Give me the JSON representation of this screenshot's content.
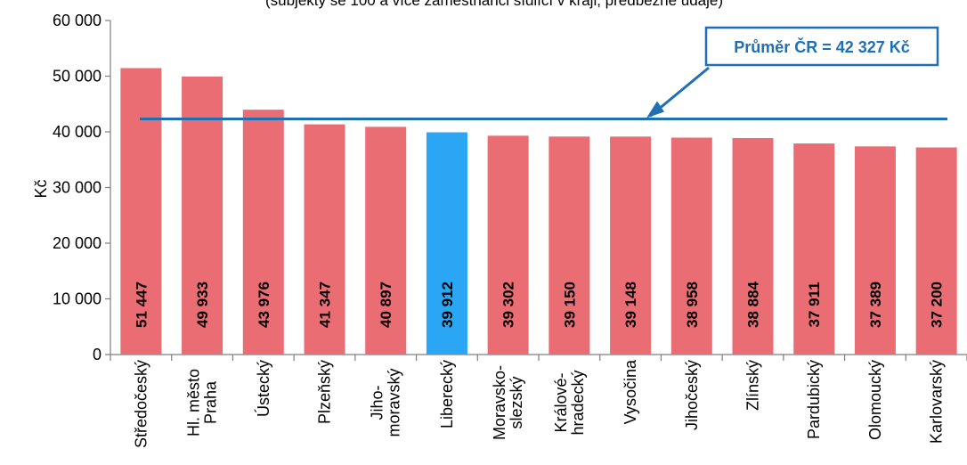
{
  "chart_data": {
    "type": "bar",
    "subtitle": "(subjekty se 100 a více zaměstnanci sídlící v kraji, předběžné údaje)",
    "ylabel": "Kč",
    "ylim": [
      0,
      60000
    ],
    "yticks": [
      "0",
      "10 000",
      "20 000",
      "30 000",
      "40 000",
      "50 000",
      "60 000"
    ],
    "categories": [
      [
        "Středočeský"
      ],
      [
        "Hl. město",
        "Praha"
      ],
      [
        "Ústecký"
      ],
      [
        "Plzeňský"
      ],
      [
        "Jiho-",
        "moravský"
      ],
      [
        "Liberecký"
      ],
      [
        "Moravsko-",
        "slezský"
      ],
      [
        "Králové-",
        "hradecký"
      ],
      [
        "Vysočina"
      ],
      [
        "Jihočeský"
      ],
      [
        "Zlínský"
      ],
      [
        "Pardubický"
      ],
      [
        "Olomoucký"
      ],
      [
        "Karlovarský"
      ]
    ],
    "values": [
      51447,
      49933,
      43976,
      41347,
      40897,
      39912,
      39302,
      39150,
      39148,
      38958,
      38884,
      37911,
      37389,
      37200
    ],
    "value_labels": [
      "51 447",
      "49 933",
      "43 976",
      "41 347",
      "40 897",
      "39 912",
      "39 302",
      "39 150",
      "39 148",
      "38 958",
      "38 884",
      "37 911",
      "37 389",
      "37 200"
    ],
    "highlight_index": 5,
    "colors": {
      "bar": "#e96d73",
      "highlight": "#2aa6f5",
      "average": "#1f6fb5"
    },
    "average": {
      "value": 42327,
      "label": "Průměr ČR = 42 327 Kč"
    }
  }
}
